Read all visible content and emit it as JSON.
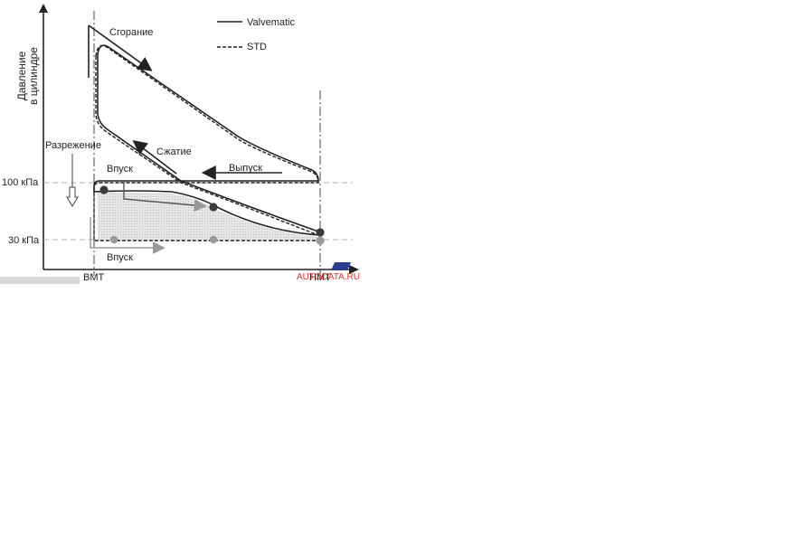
{
  "diagram": {
    "y_axis_label_line1": "Давление",
    "y_axis_label_line2": "в цилиндре",
    "legend": {
      "solid": "Valvematic",
      "dashed": "STD"
    },
    "labels": {
      "combustion": "Сгорание",
      "compression": "Сжатие",
      "exhaust": "Выпуск",
      "vacuum": "Разрежение",
      "intake_upper": "Впуск",
      "intake_lower": "Впуск"
    },
    "pressure_ticks": {
      "p100": "100 кПа",
      "p30": "30 кПа"
    },
    "x_ticks": {
      "bmt": "ВМТ",
      "nmt": "НМТ"
    },
    "watermark": "AUTODATA.RU",
    "colors": {
      "line": "#222222",
      "grey_marker": "#9a9a9a",
      "dark_marker": "#3a3a3a",
      "shade": "#d9d9d9",
      "watermark": "#d23a2a"
    }
  }
}
